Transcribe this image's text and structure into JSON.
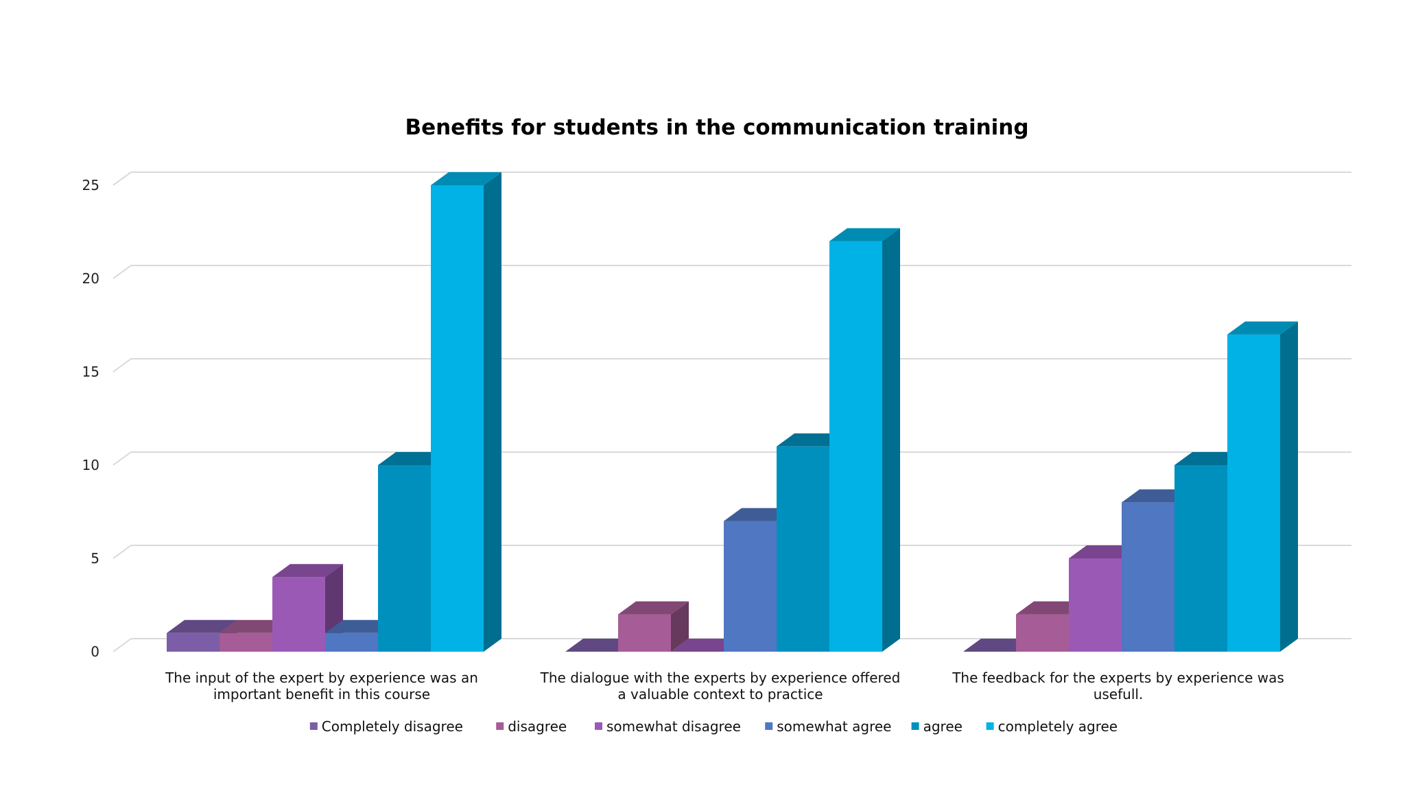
{
  "chart_data": {
    "type": "bar",
    "title": "Benefits for students in the communication training",
    "xlabel": "",
    "ylabel": "",
    "ylim": [
      0,
      25
    ],
    "yticks": [
      0,
      5,
      10,
      15,
      20,
      25
    ],
    "grid": true,
    "legend_position": "bottom",
    "categories": [
      [
        "The input of the expert by experience was an",
        "important benefit in this course"
      ],
      [
        "The dialogue with the experts by experience offered",
        "a valuable context to practice"
      ],
      [
        "The feedback for the experts by experience was",
        "usefull."
      ]
    ],
    "series": [
      {
        "name": "Completely disagree",
        "color": "#7B5EA7",
        "values": [
          1,
          0,
          0
        ]
      },
      {
        "name": "disagree",
        "color": "#A65C96",
        "values": [
          1,
          2,
          2
        ]
      },
      {
        "name": "somewhat disagree",
        "color": "#9B59B6",
        "values": [
          4,
          0,
          5
        ]
      },
      {
        "name": "somewhat agree",
        "color": "#4F77C2",
        "values": [
          1,
          7,
          8
        ]
      },
      {
        "name": "agree",
        "color": "#0090BE",
        "values": [
          10,
          11,
          10
        ]
      },
      {
        "name": "completely agree",
        "color": "#00B2E5",
        "values": [
          25,
          22,
          17
        ]
      }
    ]
  }
}
